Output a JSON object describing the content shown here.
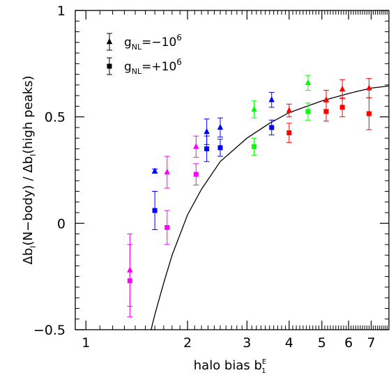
{
  "chart_data": {
    "type": "scatter",
    "xlabel": {
      "main": "halo bias b",
      "sup": "E",
      "sub": "1"
    },
    "ylabel": {
      "pre": "Δb",
      "pre_sub": "I",
      "mid": "(N−body) / Δb",
      "mid_sub": "I",
      "post": "(high peaks)"
    },
    "x_scale": "log",
    "xlim": [
      0.93,
      7.9
    ],
    "ylim": [
      -0.5,
      1.0
    ],
    "x_ticks": [
      1,
      2,
      3,
      4,
      5,
      6,
      7
    ],
    "x_tick_labels": [
      "1",
      "2",
      "3",
      "4",
      "5",
      "6",
      "7"
    ],
    "y_ticks": [
      -0.5,
      0,
      0.5,
      1
    ],
    "y_tick_labels": [
      "−0.5",
      "0",
      "0.5",
      "1"
    ],
    "legend": {
      "placement": "top-left",
      "entries": [
        {
          "marker": "triangle",
          "label_main": "g",
          "label_sub": "NL",
          "label_rest": "=−10",
          "label_sup": "6"
        },
        {
          "marker": "square",
          "label_main": "g",
          "label_sub": "NL",
          "label_rest": "=+10",
          "label_sup": "6"
        }
      ]
    },
    "colors": {
      "magenta": "#ff00ff",
      "blue": "#0000ff",
      "green": "#00ff00",
      "red": "#ff0000",
      "black": "#000000"
    },
    "series": [
      {
        "marker": "triangle",
        "points": [
          {
            "x": 1.35,
            "y": -0.22,
            "err": 0.17,
            "color": "magenta"
          },
          {
            "x": 1.74,
            "y": 0.24,
            "err": 0.075,
            "color": "magenta"
          },
          {
            "x": 2.12,
            "y": 0.36,
            "err": 0.05,
            "color": "magenta"
          },
          {
            "x": 1.6,
            "y": 0.245,
            "err": 0.01,
            "color": "blue"
          },
          {
            "x": 2.28,
            "y": 0.43,
            "err": 0.06,
            "color": "blue"
          },
          {
            "x": 2.5,
            "y": 0.45,
            "err": 0.045,
            "color": "blue"
          },
          {
            "x": 3.55,
            "y": 0.58,
            "err": 0.035,
            "color": "blue"
          },
          {
            "x": 3.15,
            "y": 0.535,
            "err": 0.04,
            "color": "green"
          },
          {
            "x": 4.55,
            "y": 0.66,
            "err": 0.035,
            "color": "green"
          },
          {
            "x": 4.0,
            "y": 0.53,
            "err": 0.03,
            "color": "red"
          },
          {
            "x": 5.15,
            "y": 0.58,
            "err": 0.045,
            "color": "red"
          },
          {
            "x": 5.75,
            "y": 0.63,
            "err": 0.045,
            "color": "red"
          },
          {
            "x": 6.9,
            "y": 0.635,
            "err": 0.045,
            "color": "red"
          }
        ]
      },
      {
        "marker": "square",
        "points": [
          {
            "x": 1.35,
            "y": -0.27,
            "err": 0.17,
            "color": "magenta"
          },
          {
            "x": 1.74,
            "y": -0.02,
            "err": 0.08,
            "color": "magenta"
          },
          {
            "x": 2.12,
            "y": 0.23,
            "err": 0.05,
            "color": "magenta"
          },
          {
            "x": 1.6,
            "y": 0.06,
            "err": 0.09,
            "color": "blue"
          },
          {
            "x": 2.28,
            "y": 0.35,
            "err": 0.06,
            "color": "blue"
          },
          {
            "x": 2.5,
            "y": 0.355,
            "err": 0.04,
            "color": "blue"
          },
          {
            "x": 3.55,
            "y": 0.45,
            "err": 0.035,
            "color": "blue"
          },
          {
            "x": 3.15,
            "y": 0.36,
            "err": 0.04,
            "color": "green"
          },
          {
            "x": 4.55,
            "y": 0.525,
            "err": 0.04,
            "color": "green"
          },
          {
            "x": 4.0,
            "y": 0.425,
            "err": 0.045,
            "color": "red"
          },
          {
            "x": 5.15,
            "y": 0.525,
            "err": 0.045,
            "color": "red"
          },
          {
            "x": 5.75,
            "y": 0.545,
            "err": 0.045,
            "color": "red"
          },
          {
            "x": 6.9,
            "y": 0.515,
            "err": 0.075,
            "color": "red"
          }
        ]
      }
    ],
    "curve": {
      "color": "black",
      "points": [
        [
          1.56,
          -0.5
        ],
        [
          1.6,
          -0.43
        ],
        [
          1.7,
          -0.28
        ],
        [
          1.8,
          -0.15
        ],
        [
          2.0,
          0.04
        ],
        [
          2.2,
          0.16
        ],
        [
          2.5,
          0.29
        ],
        [
          3.0,
          0.4
        ],
        [
          3.5,
          0.47
        ],
        [
          4.0,
          0.52
        ],
        [
          5.0,
          0.575
        ],
        [
          6.0,
          0.61
        ],
        [
          7.0,
          0.635
        ],
        [
          7.9,
          0.645
        ]
      ]
    }
  }
}
